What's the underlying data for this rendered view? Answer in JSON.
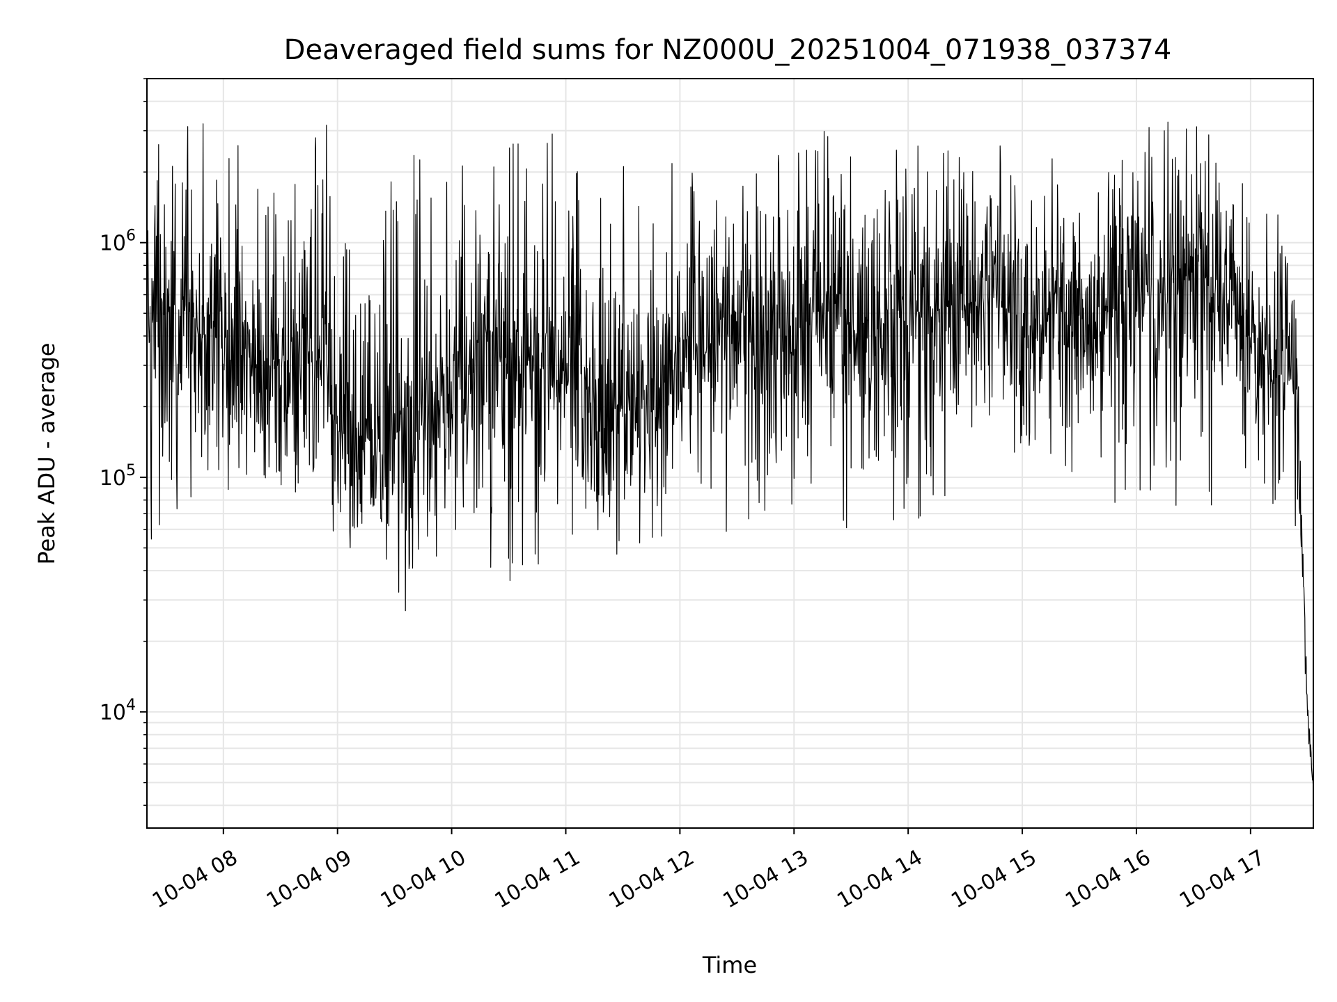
{
  "chart_data": {
    "type": "line",
    "title": "Deaveraged field sums for NZ000U_20251004_071938_037374",
    "xlabel": "Time",
    "ylabel": "Peak ADU - average",
    "y_scale": "log",
    "ylim": [
      3200,
      5000000
    ],
    "x_range_hours": [
      7.33,
      17.55
    ],
    "grid": true,
    "x_ticks": [
      {
        "hour": 8,
        "label": "10-04 08"
      },
      {
        "hour": 9,
        "label": "10-04 09"
      },
      {
        "hour": 10,
        "label": "10-04 10"
      },
      {
        "hour": 11,
        "label": "10-04 11"
      },
      {
        "hour": 12,
        "label": "10-04 12"
      },
      {
        "hour": 13,
        "label": "10-04 13"
      },
      {
        "hour": 14,
        "label": "10-04 14"
      },
      {
        "hour": 15,
        "label": "10-04 15"
      },
      {
        "hour": 16,
        "label": "10-04 16"
      },
      {
        "hour": 17,
        "label": "10-04 17"
      }
    ],
    "y_ticks": [
      {
        "value": 10000,
        "base": "10",
        "exp": "4"
      },
      {
        "value": 100000,
        "base": "10",
        "exp": "5"
      },
      {
        "value": 1000000,
        "base": "10",
        "exp": "6"
      }
    ],
    "series": [
      {
        "name": "Peak ADU - average",
        "color": "#000000",
        "approx_envelope": {
          "x_hours": [
            7.33,
            7.8,
            8.3,
            8.9,
            9.0,
            9.6,
            10.0,
            10.5,
            11.0,
            11.5,
            12.0,
            12.5,
            13.0,
            13.5,
            14.0,
            14.5,
            15.0,
            15.5,
            16.0,
            16.5,
            17.0,
            17.4,
            17.45,
            17.5,
            17.55
          ],
          "median": [
            500000,
            400000,
            300000,
            350000,
            150000,
            150000,
            250000,
            350000,
            250000,
            200000,
            350000,
            400000,
            450000,
            450000,
            500000,
            550000,
            500000,
            450000,
            600000,
            700000,
            400000,
            300000,
            50000,
            10000,
            4500
          ],
          "min": [
            44000,
            90000,
            70000,
            100000,
            37000,
            22000,
            60000,
            32000,
            54000,
            42000,
            60000,
            55000,
            70000,
            60000,
            60000,
            95000,
            110000,
            65000,
            70000,
            65000,
            95000,
            50000,
            20000,
            6000,
            4300
          ],
          "max": [
            2800000,
            3400000,
            2300000,
            3300000,
            1000000,
            2600000,
            2000000,
            3100000,
            3700000,
            2200000,
            2500000,
            1700000,
            2900000,
            3100000,
            2800000,
            2800000,
            2700000,
            2800000,
            3100000,
            3800000,
            1700000,
            1300000,
            70000,
            12000,
            5000
          ]
        }
      }
    ]
  }
}
